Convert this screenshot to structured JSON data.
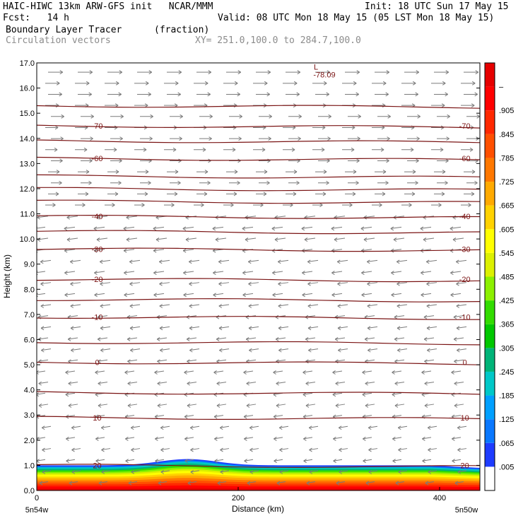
{
  "header": {
    "line1_left": "HAIC-HIWC 13km ARW-GFS init   NCAR/MMM",
    "line1_right": "Init: 18 UTC Sun 17 May 15",
    "line2_left": "Fcst:   14 h",
    "line2_right": "Valid: 08 UTC Mon 18 May 15 (05 LST Mon 18 May 15)",
    "line3_left": "Boundary Layer Tracer",
    "line3_units": "(fraction)",
    "line4_left": "Circulation vectors",
    "line4_xy": "XY= 251.0,100.0 to 284.7,100.0"
  },
  "chart_data": {
    "type": "cross-section",
    "xlabel": "Distance (km)",
    "ylabel": "Height (km)",
    "xlim": [
      0,
      440
    ],
    "ylim": [
      0,
      17
    ],
    "x_ticks": [
      0,
      200,
      400
    ],
    "y_ticks": [
      "0.0",
      "1.0",
      "2.0",
      "3.0",
      "4.0",
      "5.0",
      "6.0",
      "7.0",
      "8.0",
      "9.0",
      "10.0",
      "11.0",
      "12.0",
      "13.0",
      "14.0",
      "15.0",
      "16.0",
      "17.0"
    ],
    "x_endpoints": {
      "left": "5n54w",
      "right": "5n50w"
    },
    "colorbar": {
      "levels": [
        ".005",
        ".065",
        ".125",
        ".185",
        ".245",
        ".305",
        ".365",
        ".425",
        ".485",
        ".545",
        ".605",
        ".665",
        ".725",
        ".785",
        ".845",
        ".905",
        "–"
      ],
      "colors": [
        "#ffffff",
        "#1e3cff",
        "#0a78ff",
        "#00a0ff",
        "#00c8c8",
        "#00b478",
        "#00c800",
        "#32dc00",
        "#8cf000",
        "#dcf000",
        "#ffff00",
        "#ffd200",
        "#ffaa00",
        "#ff7800",
        "#ff5000",
        "#ff2800",
        "#ff0000",
        "#e60000"
      ]
    },
    "temperature_contours": [
      {
        "label": "20",
        "height": 1.0
      },
      {
        "label": "10",
        "height": 2.9
      },
      {
        "label": "0",
        "height": 5.1
      },
      {
        "label": "-10",
        "height": 6.9
      },
      {
        "label": "-20",
        "height": 8.4
      },
      {
        "label": "-30",
        "height": 9.6
      },
      {
        "label": "-40",
        "height": 10.9
      },
      {
        "label": "-60",
        "height": 13.2
      },
      {
        "label": "-70",
        "height": 14.5
      }
    ],
    "low_marker": {
      "symbol": "L",
      "value": "-78.09",
      "x": 280,
      "height": 16.7
    },
    "wind": {
      "upper_direction": "east",
      "lower_direction": "west",
      "reversal_height": 11.0
    }
  }
}
